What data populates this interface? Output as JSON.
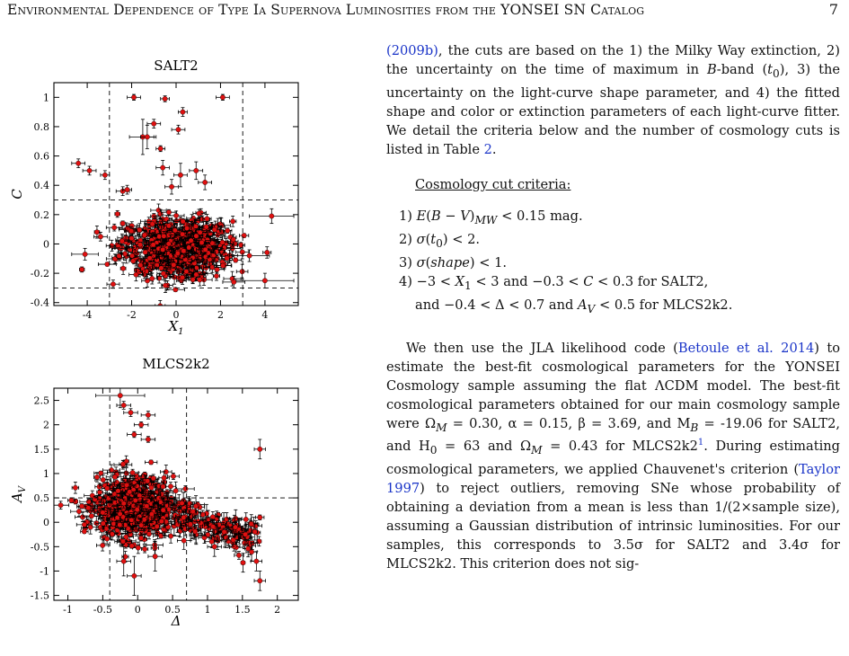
{
  "header": {
    "running_title": "Environmental Dependence of Type Ia Supernova Luminosities from the YONSEI SN Catalog",
    "page_number": "7"
  },
  "figure": {
    "panels": [
      {
        "title": "SALT2",
        "xlabel_symbol": "X",
        "xlabel_sub": "1",
        "ylabel_symbol": "C",
        "x_ticks": [
          "-4",
          "-2",
          "0",
          "2",
          "4"
        ],
        "y_ticks": [
          "-0.4",
          "-0.2",
          "0",
          "0.2",
          "0.4",
          "0.6",
          "0.8",
          "1"
        ]
      },
      {
        "title": "MLCS2k2",
        "xlabel_symbol": "Δ",
        "ylabel_symbol": "A",
        "ylabel_sub": "V",
        "x_ticks": [
          "-1",
          "-0.5",
          "0",
          "0.5",
          "1",
          "1.5",
          "2"
        ],
        "y_ticks": [
          "-1.5",
          "-1",
          "-0.5",
          "0",
          "0.5",
          "1",
          "1.5",
          "2",
          "2.5"
        ]
      }
    ]
  },
  "chart_data": [
    {
      "type": "scatter",
      "title": "SALT2",
      "xlabel": "X1",
      "ylabel": "C",
      "xlim": [
        -5.5,
        5.5
      ],
      "ylim": [
        -0.42,
        1.1
      ],
      "marker_color": "#e01010",
      "errorbar_color": "#000000",
      "cut_lines": {
        "x": [
          -3,
          3
        ],
        "y": [
          -0.3,
          0.3
        ],
        "style": "dashed"
      },
      "points": [
        {
          "x": -4.4,
          "y": 0.55,
          "xerr": 0.3,
          "yerr": 0.03
        },
        {
          "x": -3.9,
          "y": 0.5,
          "xerr": 0.3,
          "yerr": 0.03
        },
        {
          "x": -3.2,
          "y": 0.47,
          "xerr": 0.2,
          "yerr": 0.03
        },
        {
          "x": -2.4,
          "y": 0.36,
          "xerr": 0.3,
          "yerr": 0.03
        },
        {
          "x": -2.2,
          "y": 0.37,
          "xerr": 0.2,
          "yerr": 0.03
        },
        {
          "x": -1.9,
          "y": 1.0,
          "xerr": 0.3,
          "yerr": 0.02
        },
        {
          "x": -1.5,
          "y": 0.73,
          "xerr": 0.6,
          "yerr": 0.12
        },
        {
          "x": -1.3,
          "y": 0.73,
          "xerr": 0.3,
          "yerr": 0.08
        },
        {
          "x": -1.0,
          "y": 0.82,
          "xerr": 0.3,
          "yerr": 0.03
        },
        {
          "x": -0.7,
          "y": 0.65,
          "xerr": 0.2,
          "yerr": 0.02
        },
        {
          "x": -0.5,
          "y": 0.99,
          "xerr": 0.2,
          "yerr": 0.02
        },
        {
          "x": 0.1,
          "y": 0.78,
          "xerr": 0.3,
          "yerr": 0.03
        },
        {
          "x": 0.3,
          "y": 0.9,
          "xerr": 0.2,
          "yerr": 0.03
        },
        {
          "x": 2.1,
          "y": 1.0,
          "xerr": 0.3,
          "yerr": 0.02
        },
        {
          "x": 0.2,
          "y": 0.47,
          "xerr": 0.3,
          "yerr": 0.08
        },
        {
          "x": 0.9,
          "y": 0.5,
          "xerr": 0.3,
          "yerr": 0.06
        },
        {
          "x": -0.6,
          "y": 0.52,
          "xerr": 0.3,
          "yerr": 0.05
        },
        {
          "x": -0.2,
          "y": 0.39,
          "xerr": 0.3,
          "yerr": 0.05
        },
        {
          "x": 1.3,
          "y": 0.42,
          "xerr": 0.3,
          "yerr": 0.05
        },
        {
          "x": 4.3,
          "y": 0.19,
          "xerr": 1.0,
          "yerr": 0.05
        },
        {
          "x": 4.0,
          "y": -0.25,
          "xerr": 1.3,
          "yerr": 0.05
        },
        {
          "x": -4.1,
          "y": -0.07,
          "xerr": 0.6,
          "yerr": 0.04
        },
        {
          "x": -3.4,
          "y": 0.05,
          "xerr": 0.3,
          "yerr": 0.03
        },
        {
          "x": 3.3,
          "y": -0.08,
          "xerr": 0.9,
          "yerr": 0.04
        },
        {
          "x": 2.6,
          "y": -0.26,
          "xerr": 0.5,
          "yerr": 0.04
        }
      ],
      "dense_cluster": {
        "x_center": 0.0,
        "y_center": -0.02,
        "x_spread": 1.25,
        "y_spread": 0.1,
        "approx_points": 620
      }
    },
    {
      "type": "scatter",
      "title": "MLCS2k2",
      "xlabel": "Δ",
      "ylabel": "A_V",
      "xlim": [
        -1.2,
        2.3
      ],
      "ylim": [
        -1.6,
        2.75
      ],
      "marker_color": "#e01010",
      "errorbar_color": "#000000",
      "cut_lines": {
        "x": [
          -0.4,
          0.7
        ],
        "y": [
          0.5
        ],
        "style": "dashed"
      },
      "points": [
        {
          "x": -0.25,
          "y": 2.6,
          "xerr": 0.35,
          "yerr": 0.25
        },
        {
          "x": -0.2,
          "y": 2.4,
          "xerr": 0.1,
          "yerr": 0.08
        },
        {
          "x": -0.1,
          "y": 2.25,
          "xerr": 0.1,
          "yerr": 0.08
        },
        {
          "x": 0.15,
          "y": 2.2,
          "xerr": 0.1,
          "yerr": 0.08
        },
        {
          "x": 0.05,
          "y": 2.0,
          "xerr": 0.1,
          "yerr": 0.06
        },
        {
          "x": -0.05,
          "y": 1.8,
          "xerr": 0.1,
          "yerr": 0.06
        },
        {
          "x": 0.15,
          "y": 1.7,
          "xerr": 0.1,
          "yerr": 0.06
        },
        {
          "x": 1.75,
          "y": 1.5,
          "xerr": 0.08,
          "yerr": 0.2
        },
        {
          "x": -0.95,
          "y": 0.45,
          "xerr": 0.05,
          "yerr": 0.05
        },
        {
          "x": -0.8,
          "y": 0.33,
          "xerr": 0.05,
          "yerr": 0.05
        },
        {
          "x": -0.2,
          "y": -0.8,
          "xerr": 0.1,
          "yerr": 0.3
        },
        {
          "x": -0.05,
          "y": -1.1,
          "xerr": 0.1,
          "yerr": 0.4
        },
        {
          "x": 0.25,
          "y": -0.7,
          "xerr": 0.1,
          "yerr": 0.3
        },
        {
          "x": 1.7,
          "y": -0.8,
          "xerr": 0.08,
          "yerr": 0.2
        },
        {
          "x": 1.75,
          "y": -1.2,
          "xerr": 0.08,
          "yerr": 0.2
        },
        {
          "x": 1.75,
          "y": 0.1,
          "xerr": 0.06,
          "yerr": 0.05
        },
        {
          "x": 1.4,
          "y": -0.1,
          "xerr": 0.1,
          "yerr": 0.1
        },
        {
          "x": 1.1,
          "y": -0.5,
          "xerr": 0.1,
          "yerr": 0.2
        }
      ],
      "dense_cluster": {
        "x_center": -0.05,
        "y_center": 0.3,
        "x_spread": 0.28,
        "y_spread": 0.32,
        "approx_points": 560
      },
      "tail": {
        "x_from": 0.35,
        "x_to": 1.7,
        "y_from": 0.25,
        "y_to": -0.3,
        "approx_points": 150
      }
    }
  ],
  "text": {
    "p1_cite": "(2009b)",
    "p1": ", the cuts are based on the 1) the Milky Way extinction, 2) the uncertainty on the time of maximum in ",
    "p1_b": "B",
    "p1_c": "-band (",
    "p1_t0": "t",
    "p1_t0_sub": "0",
    "p1_d": "), 3) the uncertainty on the light-curve shape parameter, and 4) the fitted shape and color or extinction parameters of each light-curve fitter.  We detail the criteria below and the number of cosmology cuts is listed in Table ",
    "p1_table": "2",
    "p1_end": ".",
    "cuts_heading": "Cosmology cut criteria:",
    "cuts": [
      "1) E(B − V)MW < 0.15 mag.",
      "2) σ(t0) < 2.",
      "3) σ(shape) < 1.",
      "4) −3 < X1 < 3 and −0.3 < C < 0.3 for SALT2,",
      "and −0.4 < Δ < 0.7 and AV < 0.5 for MLCS2k2."
    ],
    "p2_a": "We then use the JLA likelihood code (",
    "p2_cite1": "Betoule et al. 2014",
    "p2_b": ") to estimate the best-fit cosmological parameters for the YONSEI Cosmology sample assuming the flat ΛCDM model. The best-fit cosmological parameters obtained for our main cosmology sample were Ω",
    "p2_sub_m": "M",
    "p2_c": " = 0.30, α = 0.15, β = 3.69, and M",
    "p2_sub_b": "B",
    "p2_d": " = -19.06 for SALT2, and H",
    "p2_sub_0": "0",
    "p2_e": " = 63 and Ω",
    "p2_sub_m2": "M",
    "p2_f": " = 0.43 for MLCS2k2",
    "p2_fn": "1",
    "p2_g": ". During estimating cosmological parameters, we applied Chauvenet's criterion (",
    "p2_cite2": "Taylor 1997",
    "p2_h": ") to reject outliers, removing SNe whose probability of obtaining a deviation from a mean is less than 1/(2×sample size), assuming a Gaussian distribution of intrinsic luminosities. For our samples, this corresponds to 3.5σ for SALT2 and 3.4σ for MLCS2k2.  This criterion does not sig-"
  }
}
